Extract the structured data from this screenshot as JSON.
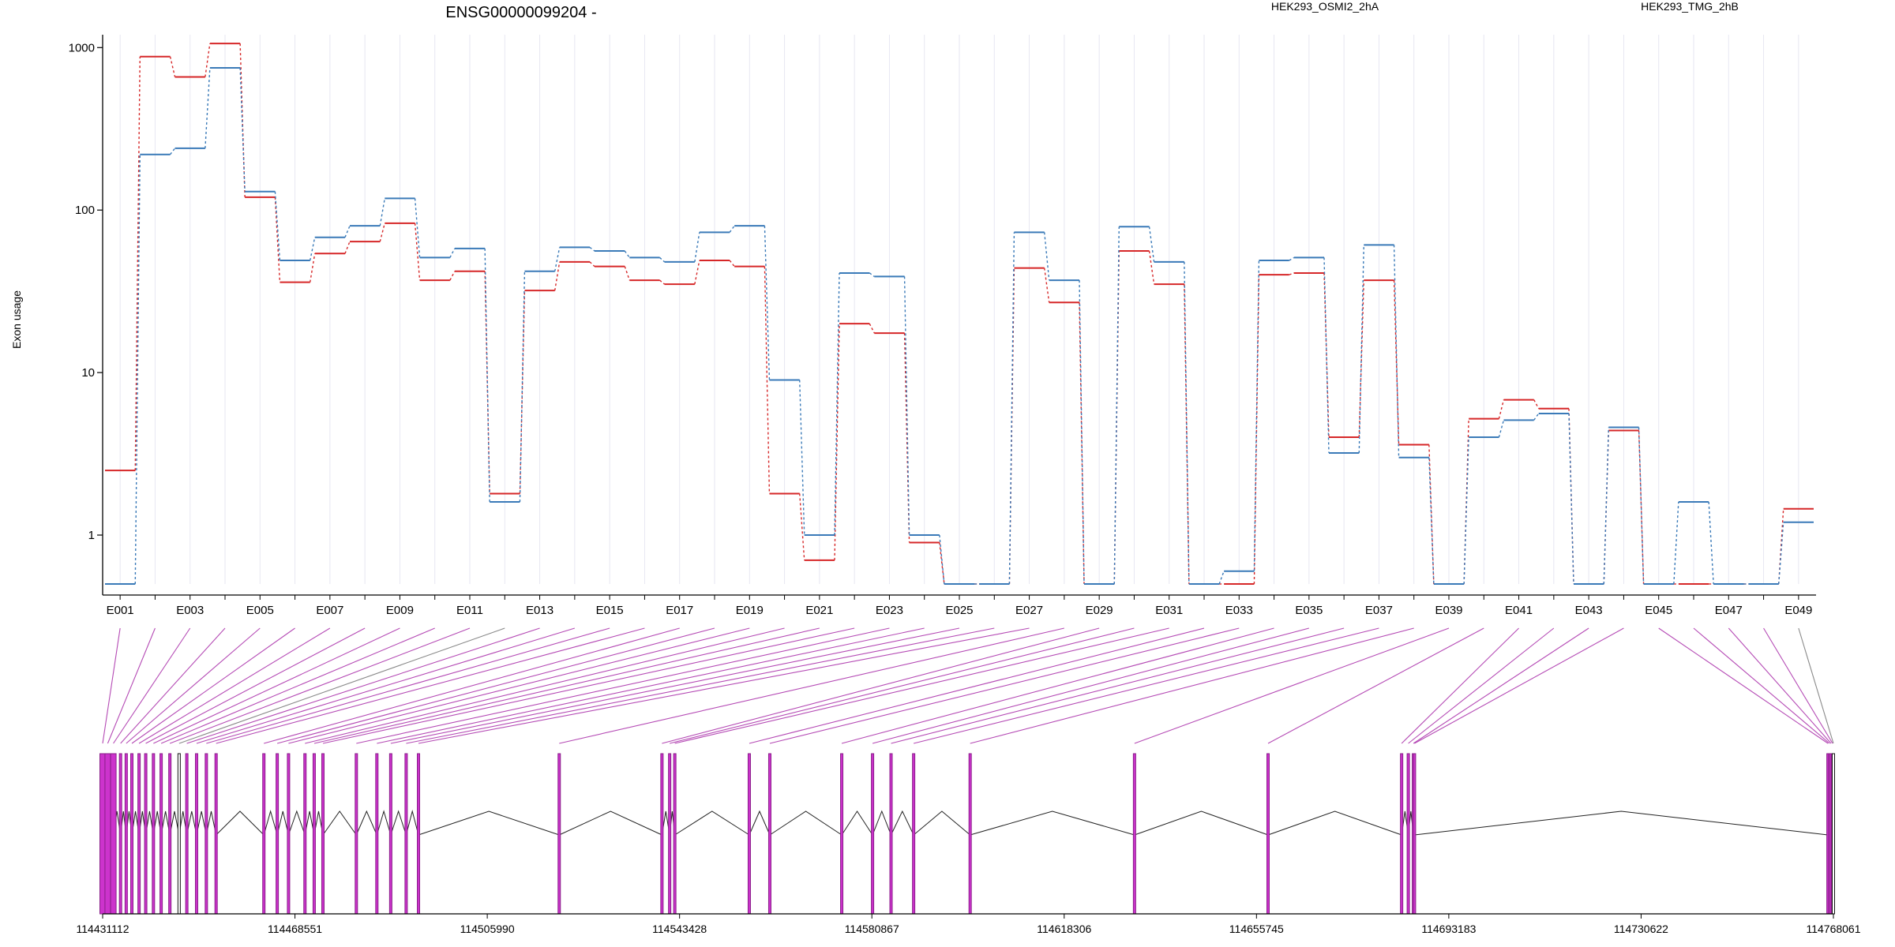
{
  "chart_data": {
    "type": "line",
    "title": "ENSG00000099204 -",
    "ylabel": "Exon usage",
    "yscale": "log",
    "ylim": [
      0.5,
      1200
    ],
    "yticks": [
      1,
      10,
      100,
      1000
    ],
    "ytick_labels": [
      "1",
      "10",
      "100",
      "1000"
    ],
    "legend_position": "top-right",
    "colors": {
      "HEK293_OSMI2_2hA": "#d62728",
      "HEK293_TMG_2hB": "#3a7ab8",
      "gene_model": "#cc33cc"
    },
    "categories": [
      "E001",
      "E002",
      "E003",
      "E004",
      "E005",
      "E006",
      "E007",
      "E008",
      "E009",
      "E010",
      "E011",
      "E012",
      "E013",
      "E014",
      "E015",
      "E016",
      "E017",
      "E018",
      "E019",
      "E020",
      "E021",
      "E022",
      "E023",
      "E024",
      "E025",
      "E026",
      "E027",
      "E028",
      "E029",
      "E030",
      "E031",
      "E032",
      "E033",
      "E034",
      "E035",
      "E036",
      "E037",
      "E038",
      "E039",
      "E040",
      "E041",
      "E042",
      "E043",
      "E044",
      "E045",
      "E046",
      "E047",
      "E048",
      "E049"
    ],
    "x_tick_labels": [
      "E001",
      "E003",
      "E005",
      "E007",
      "E009",
      "E011",
      "E013",
      "E015",
      "E017",
      "E019",
      "E021",
      "E023",
      "E025",
      "E027",
      "E029",
      "E031",
      "E033",
      "E035",
      "E037",
      "E039",
      "E041",
      "E043",
      "E045",
      "E047",
      "E049"
    ],
    "series": [
      {
        "name": "HEK293_OSMI2_2hA",
        "color": "#d62728",
        "values": [
          2.5,
          880,
          660,
          1060,
          120,
          36,
          54,
          64,
          83,
          37,
          42,
          1.8,
          32,
          48,
          45,
          37,
          35,
          49,
          45,
          1.8,
          0.7,
          20,
          17.5,
          0.9,
          0.5,
          0.5,
          44,
          27,
          0.5,
          56,
          35,
          0.5,
          0.5,
          40,
          41,
          4.0,
          37,
          3.6,
          0.5,
          5.2,
          6.8,
          6.0,
          0.5,
          4.4,
          0.5,
          0.5,
          0.5,
          0.5,
          1.45
        ]
      },
      {
        "name": "HEK293_TMG_2hB",
        "color": "#3a7ab8",
        "values": [
          0.5,
          220,
          240,
          750,
          130,
          49,
          68,
          80,
          118,
          51,
          58,
          1.6,
          42,
          59,
          56,
          51,
          48,
          73,
          80,
          9.0,
          1.0,
          41,
          39,
          1.0,
          0.5,
          0.5,
          73,
          37,
          0.5,
          79,
          48,
          0.5,
          0.6,
          49,
          51,
          3.2,
          61,
          3.0,
          0.5,
          4.0,
          5.1,
          5.6,
          0.5,
          4.6,
          0.5,
          1.6,
          0.5,
          0.5,
          1.2
        ]
      }
    ],
    "genomic_axis": {
      "ticks": [
        114431112,
        114468551,
        114505990,
        114543428,
        114580867,
        114618306,
        114655745,
        114693183,
        114730622,
        114768061
      ],
      "tick_labels": [
        "114431112",
        "114468551",
        "114505990",
        "114543428",
        "114580867",
        "114618306",
        "114655745",
        "114693183",
        "114730622",
        "114768061"
      ]
    },
    "exon_positions": [
      114431112,
      114432100,
      114433200,
      114434600,
      114435700,
      114436800,
      114438200,
      114439500,
      114441000,
      114442500,
      114444200,
      114446000,
      114447500,
      114449400,
      114451300,
      114453200,
      114462500,
      114465100,
      114467300,
      114470500,
      114472300,
      114474000,
      114480500,
      114484500,
      114487200,
      114490200,
      114492600,
      114520000,
      114540000,
      114541500,
      114542500,
      114557000,
      114561000,
      114575000,
      114581000,
      114584600,
      114589000,
      114600000,
      114632000,
      114658000,
      114684000,
      114685300,
      114686300,
      114686500,
      114767000,
      114767300,
      114767600,
      114767900,
      114768061
    ],
    "highlighted_exons": [
      "E001",
      "E002",
      "E003",
      "E004",
      "E005",
      "E006",
      "E007",
      "E008",
      "E009",
      "E010",
      "E011",
      "E013",
      "E014",
      "E015",
      "E016",
      "E017",
      "E018",
      "E019",
      "E020",
      "E021",
      "E022",
      "E023",
      "E024",
      "E025",
      "E026",
      "E027",
      "E028",
      "E029",
      "E030",
      "E031",
      "E032",
      "E033",
      "E034",
      "E035",
      "E036",
      "E037",
      "E038",
      "E039",
      "E040",
      "E041",
      "E042",
      "E043",
      "E044",
      "E045",
      "E046",
      "E047",
      "E048"
    ]
  }
}
